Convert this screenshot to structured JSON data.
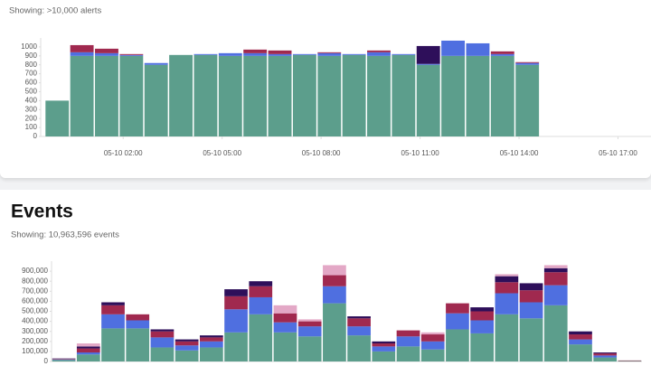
{
  "chart_data": [
    {
      "type": "bar",
      "stacked": true,
      "grid": false,
      "subtitle": "Showing: >10,000 alerts",
      "x": [
        0,
        0.75,
        1.5,
        2.25,
        3,
        3.75,
        4.5,
        5.25,
        6,
        6.75,
        7.5,
        8.25,
        9,
        9.75,
        10.5,
        11.25,
        12,
        12.75,
        13.5,
        14.25
      ],
      "xlim": [
        -0.5,
        18
      ],
      "xticks": [
        {
          "value": 2,
          "label": "05-10 02:00"
        },
        {
          "value": 5,
          "label": "05-10 05:00"
        },
        {
          "value": 8,
          "label": "05-10 08:00"
        },
        {
          "value": 11,
          "label": "05-10 11:00"
        },
        {
          "value": 14,
          "label": "05-10 14:00"
        },
        {
          "value": 17,
          "label": "05-10 17:00"
        }
      ],
      "ylim": [
        0,
        1100
      ],
      "yticks": [
        0,
        100,
        200,
        300,
        400,
        500,
        600,
        700,
        800,
        900,
        1000
      ],
      "series": [
        {
          "color": "#5c9e8c",
          "values": [
            400,
            900,
            900,
            900,
            800,
            910,
            910,
            900,
            900,
            900,
            910,
            900,
            910,
            900,
            910,
            800,
            900,
            900,
            900,
            800
          ]
        },
        {
          "color": "#4f6fe0",
          "values": [
            0,
            40,
            30,
            10,
            20,
            0,
            10,
            30,
            30,
            20,
            10,
            30,
            10,
            40,
            10,
            10,
            170,
            140,
            20,
            20
          ]
        },
        {
          "color": "#a0294f",
          "values": [
            0,
            80,
            50,
            10,
            0,
            0,
            0,
            0,
            40,
            40,
            0,
            10,
            0,
            20,
            0,
            0,
            0,
            0,
            30,
            10
          ]
        },
        {
          "color": "#2e0f5a",
          "values": [
            0,
            0,
            0,
            0,
            0,
            0,
            0,
            0,
            0,
            0,
            0,
            0,
            0,
            0,
            0,
            200,
            0,
            0,
            0,
            0
          ]
        }
      ]
    },
    {
      "type": "bar",
      "stacked": true,
      "grid": false,
      "title": "Events",
      "subtitle": "Showing: 10,963,596 events",
      "categories": [
        null,
        null,
        null,
        null,
        null,
        null,
        null,
        null,
        null,
        null,
        null,
        null,
        null,
        null,
        null,
        null,
        null,
        null,
        null,
        null,
        null,
        null,
        null,
        null
      ],
      "ylim": [
        0,
        1000000
      ],
      "yticks": [
        0,
        {
          "value": 100000,
          "label": "100,000"
        },
        {
          "value": 200000,
          "label": "200,000"
        },
        {
          "value": 300000,
          "label": "300,000"
        },
        {
          "value": 400000,
          "label": "400,000"
        },
        {
          "value": 500000,
          "label": "500,000"
        },
        {
          "value": 600000,
          "label": "600,000"
        },
        {
          "value": 700000,
          "label": "700,000"
        },
        {
          "value": 800000,
          "label": "800,000"
        },
        {
          "value": 900000,
          "label": "900,000"
        }
      ],
      "series": [
        {
          "color": "#5c9e8c",
          "values": [
            15000,
            70000,
            330000,
            330000,
            140000,
            110000,
            140000,
            290000,
            470000,
            290000,
            250000,
            580000,
            260000,
            100000,
            150000,
            120000,
            320000,
            280000,
            470000,
            430000,
            560000,
            170000,
            40000,
            5000
          ]
        },
        {
          "color": "#4f6fe0",
          "values": [
            5000,
            20000,
            140000,
            80000,
            100000,
            50000,
            60000,
            230000,
            170000,
            100000,
            100000,
            170000,
            90000,
            50000,
            100000,
            80000,
            160000,
            130000,
            210000,
            160000,
            200000,
            50000,
            20000,
            0
          ]
        },
        {
          "color": "#a0294f",
          "values": [
            5000,
            40000,
            90000,
            60000,
            60000,
            40000,
            40000,
            130000,
            110000,
            90000,
            50000,
            110000,
            80000,
            30000,
            60000,
            70000,
            100000,
            90000,
            110000,
            120000,
            130000,
            50000,
            20000,
            5000
          ]
        },
        {
          "color": "#2e0f5a",
          "values": [
            5000,
            20000,
            30000,
            0,
            20000,
            20000,
            20000,
            70000,
            50000,
            0,
            0,
            0,
            20000,
            20000,
            0,
            0,
            0,
            40000,
            60000,
            70000,
            40000,
            30000,
            10000,
            0
          ]
        },
        {
          "color": "#e3a8c6",
          "values": [
            0,
            30000,
            0,
            0,
            0,
            0,
            0,
            0,
            0,
            80000,
            20000,
            100000,
            0,
            0,
            0,
            20000,
            0,
            0,
            20000,
            0,
            30000,
            0,
            0,
            0
          ]
        }
      ]
    }
  ]
}
